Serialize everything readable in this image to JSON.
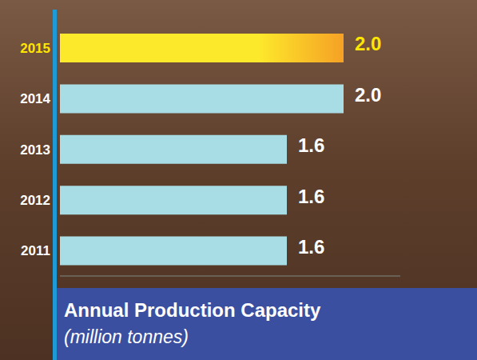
{
  "chart_data": {
    "type": "bar",
    "title": "Annual Production Capacity",
    "subtitle": "(million tonnes)",
    "orientation": "horizontal",
    "categories": [
      "2015",
      "2014",
      "2013",
      "2012",
      "2011"
    ],
    "values": [
      2.0,
      2.0,
      1.6,
      1.6,
      1.6
    ],
    "value_labels": [
      "2.0",
      "2.0",
      "1.6",
      "1.6",
      "1.6"
    ],
    "colors": [
      "#fde92b",
      "#a8dde6",
      "#a8dde6",
      "#a8dde6",
      "#a8dde6"
    ],
    "xlim": [
      0,
      2.4
    ],
    "data_labels": true,
    "tick_labels": "y",
    "grid": false
  }
}
